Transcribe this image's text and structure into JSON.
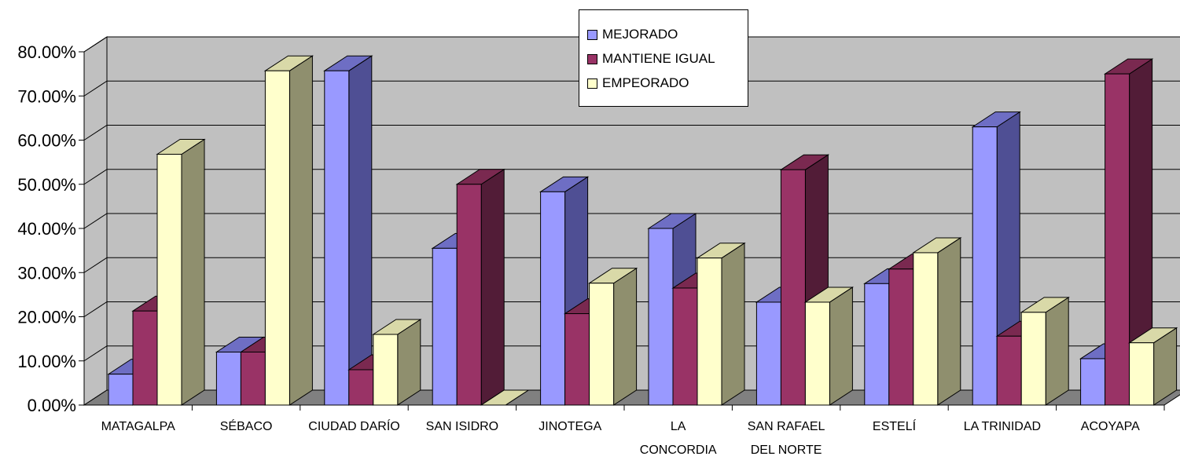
{
  "chart_data": {
    "type": "bar",
    "categories": [
      "MATAGALPA",
      "SÉBACO",
      "CIUDAD DARÍO",
      "SAN ISIDRO",
      "JINOTEGA",
      "LA CONCORDIA",
      "SAN RAFAEL DEL NORTE",
      "ESTELÍ",
      "LA TRINIDAD",
      "ACOYAPA"
    ],
    "category_lines": [
      [
        "MATAGALPA"
      ],
      [
        "SÉBACO"
      ],
      [
        "CIUDAD DARÍO"
      ],
      [
        "SAN ISIDRO"
      ],
      [
        "JINOTEGA"
      ],
      [
        "LA",
        "CONCORDIA"
      ],
      [
        "SAN RAFAEL",
        "DEL NORTE"
      ],
      [
        "ESTELÍ"
      ],
      [
        "LA TRINIDAD"
      ],
      [
        "ACOYAPA"
      ]
    ],
    "series": [
      {
        "name": "MEJORADO",
        "values": [
          7.0,
          12.0,
          75.7,
          35.5,
          48.3,
          40.0,
          23.3,
          27.5,
          63.0,
          10.5
        ]
      },
      {
        "name": "MANTIENE IGUAL",
        "values": [
          21.3,
          12.0,
          8.0,
          50.0,
          20.7,
          26.5,
          53.3,
          30.8,
          15.6,
          75.0
        ]
      },
      {
        "name": "EMPEORADO",
        "values": [
          56.8,
          75.7,
          16.0,
          0.0,
          27.6,
          33.3,
          23.3,
          34.5,
          21.0,
          14.1
        ]
      }
    ],
    "colors": {
      "MEJORADO": {
        "front": "#9999ff",
        "top": "#6e6ec4",
        "side": "#4f4f94"
      },
      "MANTIENE IGUAL": {
        "front": "#993366",
        "top": "#7a2950",
        "side": "#521c37"
      },
      "EMPEORADO": {
        "front": "#ffffcc",
        "top": "#d9d9a8",
        "side": "#8f8f6e"
      }
    },
    "wall_color": "#c0c0c0",
    "floor_color": "#808080",
    "y_ticks": [
      "0.00%",
      "10.00%",
      "20.00%",
      "30.00%",
      "40.00%",
      "50.00%",
      "60.00%",
      "70.00%",
      "80.00%"
    ],
    "ylim": [
      0,
      80
    ],
    "grid": true,
    "legend_position": "top-center",
    "title": "",
    "xlabel": "",
    "ylabel": ""
  }
}
